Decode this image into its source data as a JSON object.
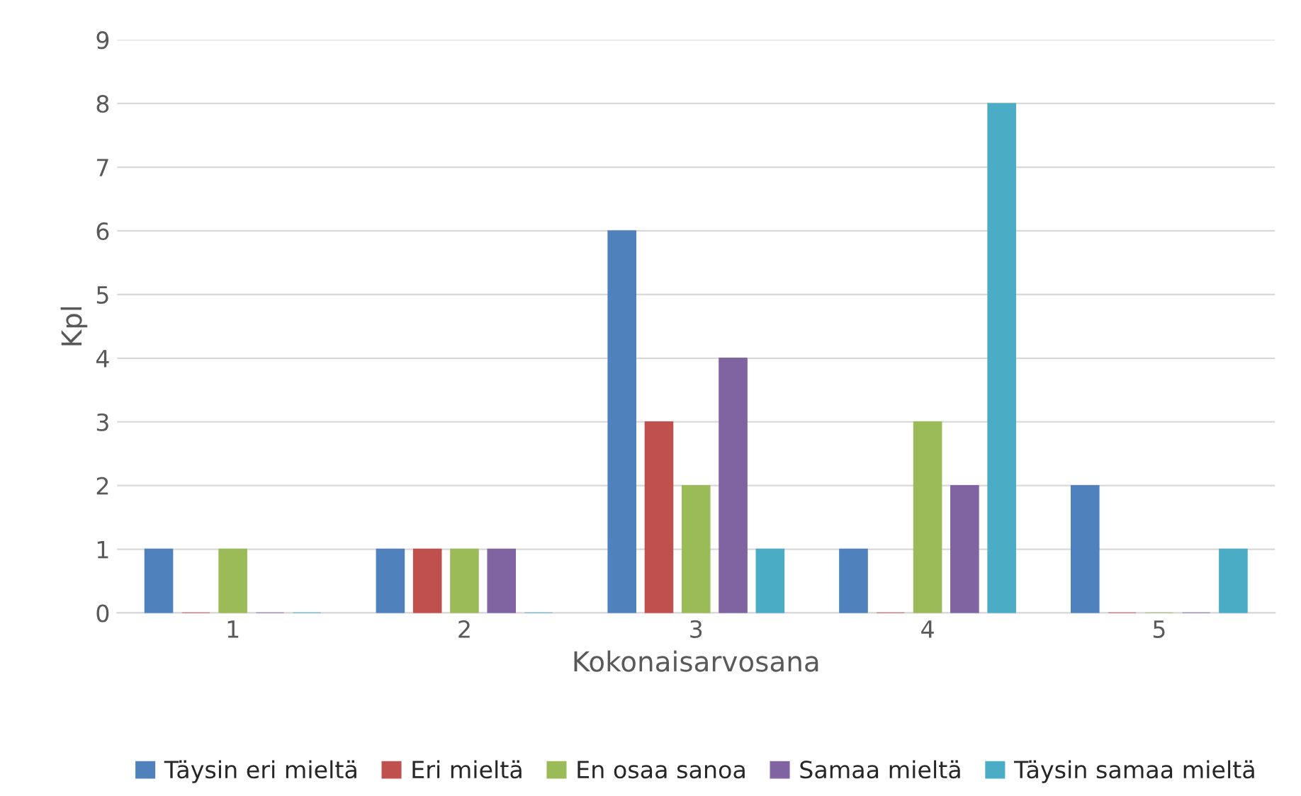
{
  "chart_data": {
    "type": "bar",
    "xlabel": "Kokonaisarvosana",
    "ylabel": "Kpl",
    "categories": [
      "1",
      "2",
      "3",
      "4",
      "5"
    ],
    "series": [
      {
        "name": "Täysin eri mieltä",
        "color": "#4f81bd",
        "values": [
          1,
          1,
          6,
          1,
          2
        ]
      },
      {
        "name": "Eri mieltä",
        "color": "#c0504d",
        "values": [
          0,
          1,
          3,
          0,
          0
        ]
      },
      {
        "name": "En osaa sanoa",
        "color": "#9bbb59",
        "values": [
          1,
          1,
          2,
          3,
          0
        ]
      },
      {
        "name": "Samaa mieltä",
        "color": "#8064a2",
        "values": [
          0,
          1,
          4,
          2,
          0
        ]
      },
      {
        "name": "Täysin samaa mieltä",
        "color": "#4bacc6",
        "values": [
          0,
          0,
          1,
          8,
          1
        ]
      }
    ],
    "ylim": [
      0,
      9
    ],
    "yticks": [
      0,
      1,
      2,
      3,
      4,
      5,
      6,
      7,
      8,
      9
    ],
    "grid": "y",
    "legend": "bottom"
  }
}
